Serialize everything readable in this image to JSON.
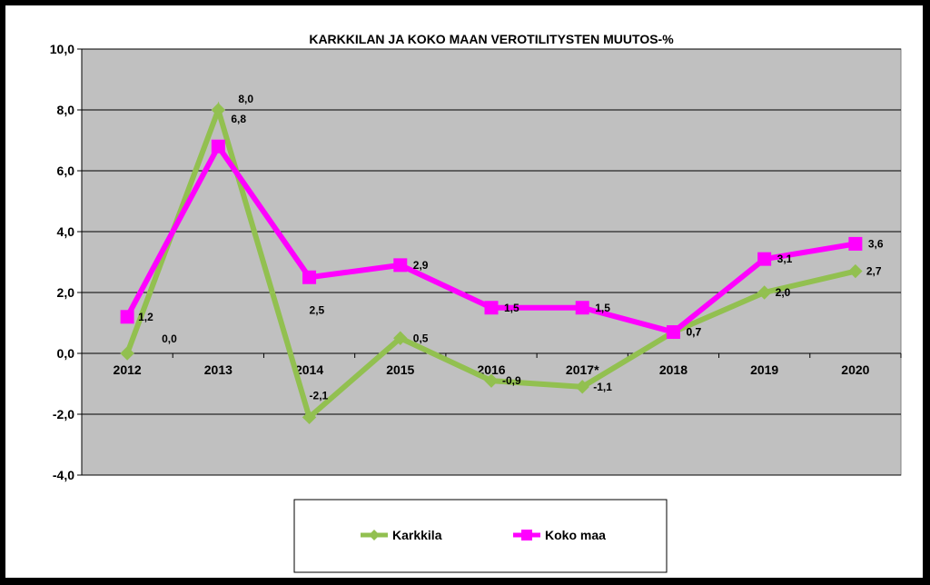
{
  "chart_data": {
    "type": "line",
    "title": "KARKKILAN  JA KOKO MAAN  VEROTILITYSTEN MUUTOS-%",
    "categories": [
      "2012",
      "2013",
      "2014",
      "2015",
      "2016",
      "2017*",
      "2018",
      "2019",
      "2020"
    ],
    "series": [
      {
        "name": "Karkkila",
        "color": "#92C050",
        "marker": "diamond",
        "values": [
          0.0,
          8.0,
          -2.1,
          0.5,
          -0.9,
          -1.1,
          0.7,
          2.0,
          2.7
        ],
        "labels": [
          "0,0",
          "8,0",
          "-2,1",
          "0,5",
          "-0,9",
          "-1,1",
          "0,7",
          "2,0",
          "2,7"
        ]
      },
      {
        "name": "Koko maa",
        "color": "#FF00FF",
        "marker": "square",
        "values": [
          1.2,
          6.8,
          2.5,
          2.9,
          1.5,
          1.5,
          0.7,
          3.1,
          3.6
        ],
        "labels": [
          "1,2",
          "6,8",
          "2,5",
          "2,9",
          "1,5",
          "1,5",
          "0,7",
          "3,1",
          "3,6"
        ]
      }
    ],
    "ylim": [
      -4.0,
      10.0
    ],
    "yticks": [
      "-4,0",
      "-2,0",
      "0,0",
      "2,0",
      "4,0",
      "6,0",
      "8,0",
      "10,0"
    ],
    "ytick_values": [
      -4,
      -2,
      0,
      2,
      4,
      6,
      8,
      10
    ],
    "grid": true,
    "legend_position": "bottom",
    "plot_background": "#C0C0C0"
  }
}
